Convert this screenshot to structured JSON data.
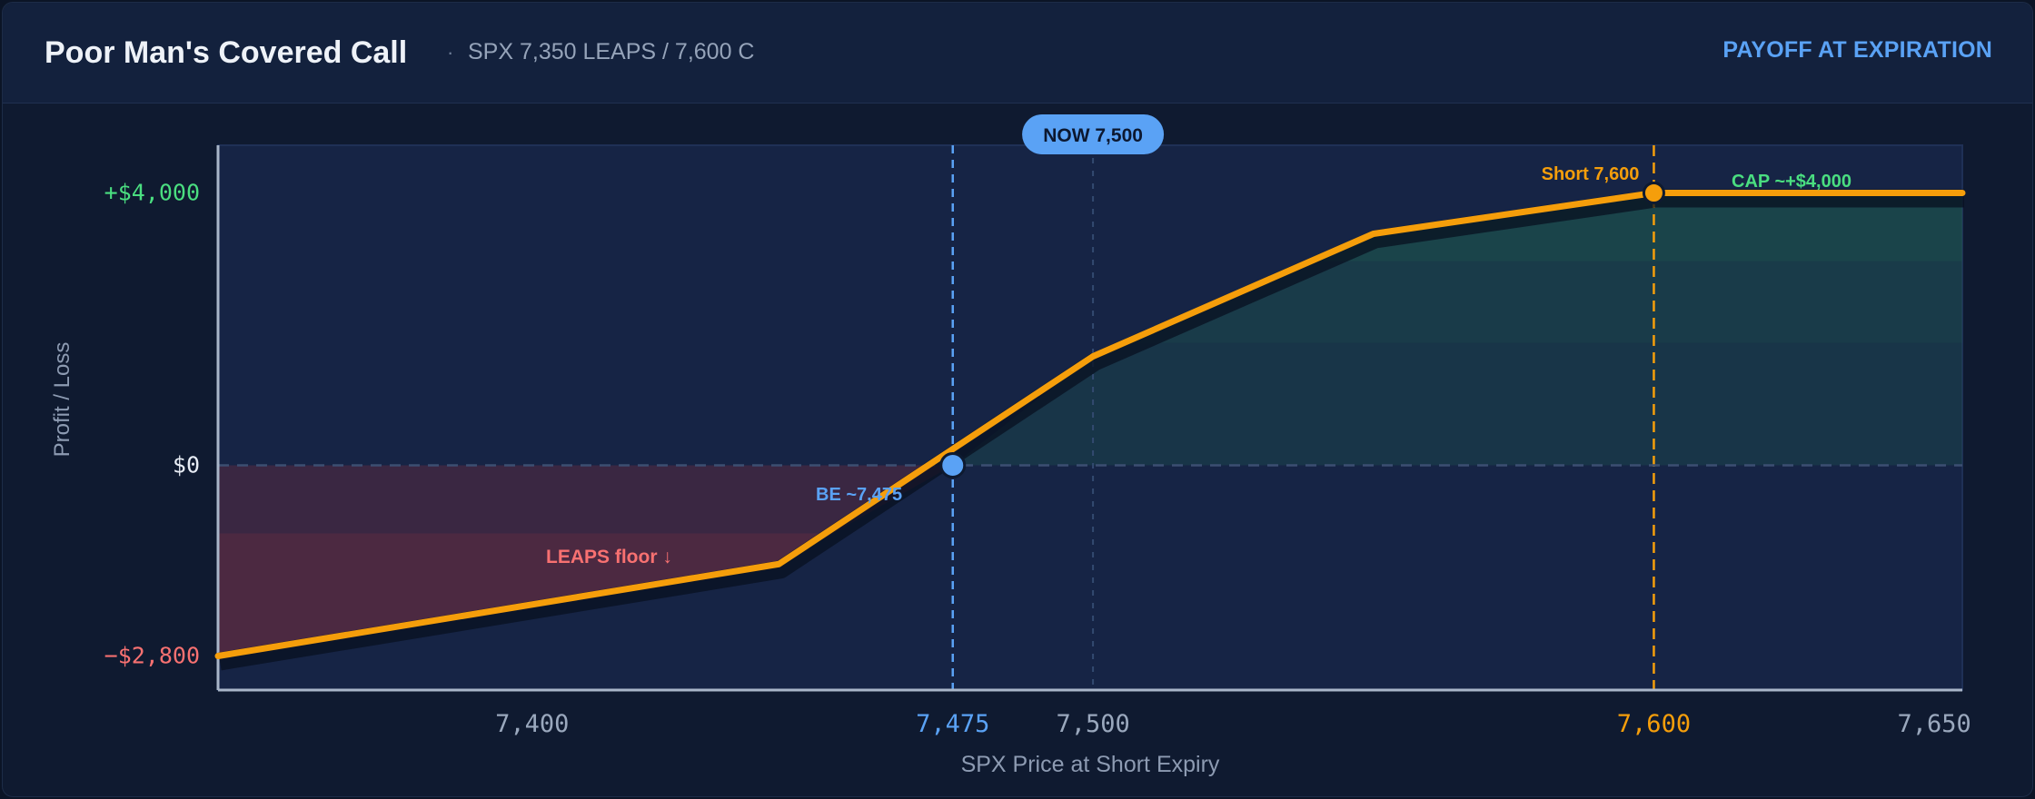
{
  "header": {
    "title": "Poor Man's Covered Call",
    "separator": "·",
    "subtitle": "SPX 7,350 LEAPS / 7,600 C",
    "badge": "PAYOFF AT EXPIRATION"
  },
  "colors": {
    "payoff_line": "#f59e0b",
    "profit_fill": "#1f5e4e",
    "loss_fill": "#5a2a40",
    "breakeven": "#5aa2f5",
    "strike": "#f59e0b",
    "profit_text": "#4ade80",
    "loss_text": "#f87171",
    "axis_text": "#9aa8bd"
  },
  "chart_data": {
    "type": "line",
    "xlabel": "SPX Price at Short Expiry",
    "ylabel": "Profit / Loss",
    "xlim": [
      7344,
      7655
    ],
    "ylim": [
      -3300,
      4700
    ],
    "x_ticks": [
      {
        "value": 7400,
        "label": "7,400",
        "style": "normal"
      },
      {
        "value": 7475,
        "label": "7,475",
        "style": "breakeven"
      },
      {
        "value": 7500,
        "label": "7,500",
        "style": "normal"
      },
      {
        "value": 7600,
        "label": "7,600",
        "style": "strike"
      },
      {
        "value": 7650,
        "label": "7,650",
        "style": "normal"
      }
    ],
    "y_ticks": [
      {
        "value": 4000,
        "label": "+$4,000",
        "style": "profit"
      },
      {
        "value": 0,
        "label": "$0",
        "style": "zero"
      },
      {
        "value": -2800,
        "label": "−$2,800",
        "style": "loss"
      }
    ],
    "series": [
      {
        "x": [
          7344,
          7444,
          7500,
          7550,
          7600,
          7655
        ],
        "y": [
          -2800,
          -1450,
          1600,
          3400,
          4000,
          4000
        ]
      }
    ],
    "reference_lines": {
      "breakeven_x": 7475,
      "current_price_x": 7500,
      "short_strike_x": 7600
    },
    "markers": [
      {
        "x": 7475,
        "y": 0,
        "kind": "breakeven"
      },
      {
        "x": 7600,
        "y": 4000,
        "kind": "strike"
      }
    ],
    "annotations": {
      "now_label": "NOW 7,500",
      "short_label": "Short 7,600",
      "cap_label": "CAP ~+$4,000",
      "breakeven_label": "BE ~7,475",
      "leaps_floor_label": "LEAPS floor ↓"
    },
    "grid": false
  }
}
